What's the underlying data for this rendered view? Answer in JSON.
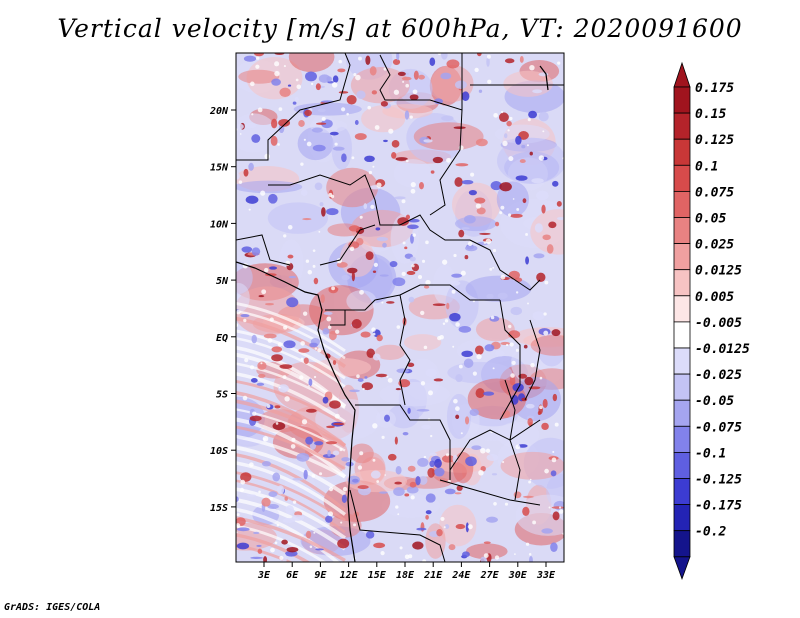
{
  "title": "Vertical velocity [m/s] at 600hPa, VT: 2020091600",
  "footer": "GrADS: IGES/COLA",
  "lat_labels": [
    "20N",
    "15N",
    "10N",
    "5N",
    "EQ",
    "5S",
    "10S",
    "15S"
  ],
  "lon_labels": [
    "3E",
    "6E",
    "9E",
    "12E",
    "15E",
    "18E",
    "21E",
    "24E",
    "27E",
    "30E",
    "33E"
  ],
  "colorbar": {
    "labels": [
      "0.175",
      "0.15",
      "0.125",
      "0.1",
      "0.075",
      "0.05",
      "0.025",
      "0.0125",
      "0.005",
      "-0.005",
      "-0.0125",
      "-0.025",
      "-0.05",
      "-0.075",
      "-0.1",
      "-0.125",
      "-0.175",
      "-0.2"
    ],
    "colors": [
      "#a0141e",
      "#b4232a",
      "#c83737",
      "#d74b4b",
      "#e06464",
      "#e88282",
      "#f0a0a0",
      "#f7c3c3",
      "#fde6e6",
      "#ffffff",
      "#dcdcfa",
      "#c3c3f5",
      "#a5a5f0",
      "#8282eb",
      "#5f5fe1",
      "#3c3cd2",
      "#2323b4",
      "#14148c"
    ]
  }
}
